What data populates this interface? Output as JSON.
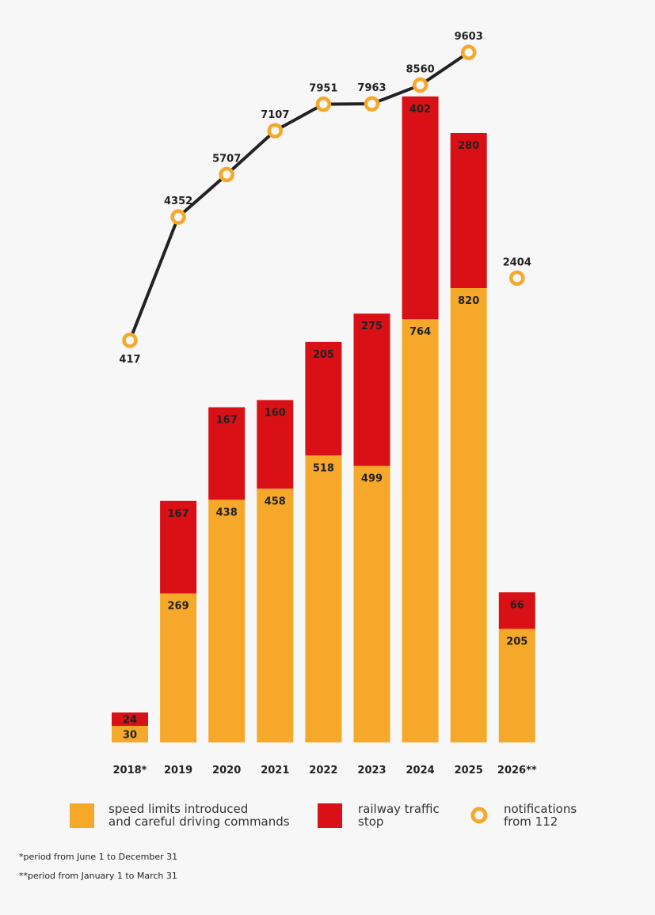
{
  "chart_data": {
    "type": "bar",
    "stacked": true,
    "categories": [
      "2018*",
      "2019",
      "2020",
      "2021",
      "2022",
      "2023",
      "2024",
      "2025",
      "2026**"
    ],
    "series": [
      {
        "name": "speed limits introduced and careful driving commands",
        "kind": "bar",
        "color": "#F5A82A",
        "values": [
          30,
          269,
          438,
          458,
          518,
          499,
          764,
          820,
          205
        ]
      },
      {
        "name": "railway traffic stop",
        "kind": "bar",
        "color": "#D91016",
        "values": [
          24,
          167,
          167,
          160,
          205,
          275,
          402,
          280,
          66
        ]
      },
      {
        "name": "notifications from 112",
        "kind": "line-marker",
        "color": "#F5A82A",
        "line_color": "#222222",
        "values": [
          417,
          4352,
          5707,
          7107,
          7951,
          7963,
          8560,
          9603,
          2404
        ],
        "connected_through": "2025"
      }
    ],
    "legend": {
      "placement": "bottom",
      "items": [
        {
          "line1": "speed limits introduced",
          "line2": "and careful driving commands"
        },
        {
          "line1": "railway traffic",
          "line2": "stop"
        },
        {
          "line1": "notifications",
          "line2": "from 112"
        }
      ]
    },
    "footnotes": [
      "*period from June 1 to December 31",
      "**period from January 1 to March 31"
    ],
    "grid": false
  }
}
